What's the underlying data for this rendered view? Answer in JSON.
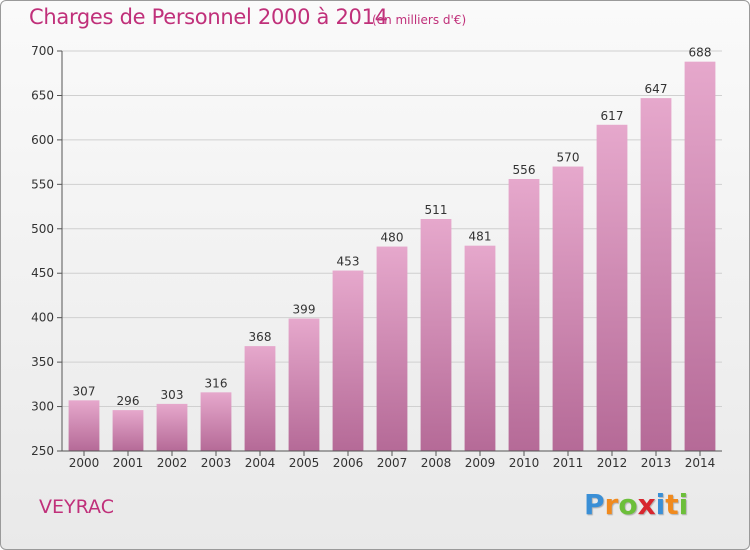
{
  "header": {
    "title": "Charges de Personnel 2000 à 2014",
    "subtitle": "(en milliers d'€)"
  },
  "footer": {
    "commune": "VEYRAC",
    "logo": {
      "text": "Proxiti",
      "letters": [
        {
          "ch": "P",
          "color": "#3a8fd6"
        },
        {
          "ch": "r",
          "color": "#f08a1e"
        },
        {
          "ch": "o",
          "color": "#6cbf3a"
        },
        {
          "ch": "x",
          "color": "#d8262e"
        },
        {
          "ch": "i",
          "color": "#3a8fd6"
        },
        {
          "ch": "t",
          "color": "#f08a1e"
        },
        {
          "ch": "i",
          "color": "#6cbf3a"
        }
      ]
    }
  },
  "chart_data": {
    "type": "bar",
    "title": "Charges de Personnel 2000 à 2014",
    "subtitle": "(en milliers d'€)",
    "categories": [
      "2000",
      "2001",
      "2002",
      "2003",
      "2004",
      "2005",
      "2006",
      "2007",
      "2008",
      "2009",
      "2010",
      "2011",
      "2012",
      "2013",
      "2014"
    ],
    "values": [
      307,
      296,
      303,
      316,
      368,
      399,
      453,
      480,
      511,
      481,
      556,
      570,
      617,
      647,
      688
    ],
    "ylim": [
      250,
      700
    ],
    "yticks": [
      250,
      300,
      350,
      400,
      450,
      500,
      550,
      600,
      650,
      700
    ],
    "grid": true,
    "colors": {
      "bar_top": "#e6a8cc",
      "bar_bottom": "#b56a97",
      "text": "#c0307a",
      "grid": "#d0d0d0"
    }
  }
}
